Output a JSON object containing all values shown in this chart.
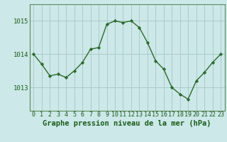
{
  "x": [
    0,
    1,
    2,
    3,
    4,
    5,
    6,
    7,
    8,
    9,
    10,
    11,
    12,
    13,
    14,
    15,
    16,
    17,
    18,
    19,
    20,
    21,
    22,
    23
  ],
  "y": [
    1014.0,
    1013.7,
    1013.35,
    1013.4,
    1013.3,
    1013.5,
    1013.75,
    1014.15,
    1014.2,
    1014.9,
    1015.0,
    1014.95,
    1015.0,
    1014.8,
    1014.35,
    1013.8,
    1013.55,
    1013.0,
    1012.8,
    1012.65,
    1013.2,
    1013.45,
    1013.75,
    1014.0
  ],
  "line_color": "#2d6a2d",
  "marker": "D",
  "marker_size": 2.2,
  "bg_color": "#cce8e8",
  "grid_color": "#aacccc",
  "xlabel": "Graphe pression niveau de la mer (hPa)",
  "xlabel_fontsize": 7.5,
  "xlabel_color": "#1a5c1a",
  "xlabel_fontweight": "bold",
  "yticks": [
    1013,
    1014,
    1015
  ],
  "ylim": [
    1012.3,
    1015.5
  ],
  "xlim": [
    -0.5,
    23.5
  ],
  "tick_color": "#1a5c1a",
  "tick_fontsize": 6.0,
  "spine_color": "#5a8a5a",
  "linewidth": 1.0
}
